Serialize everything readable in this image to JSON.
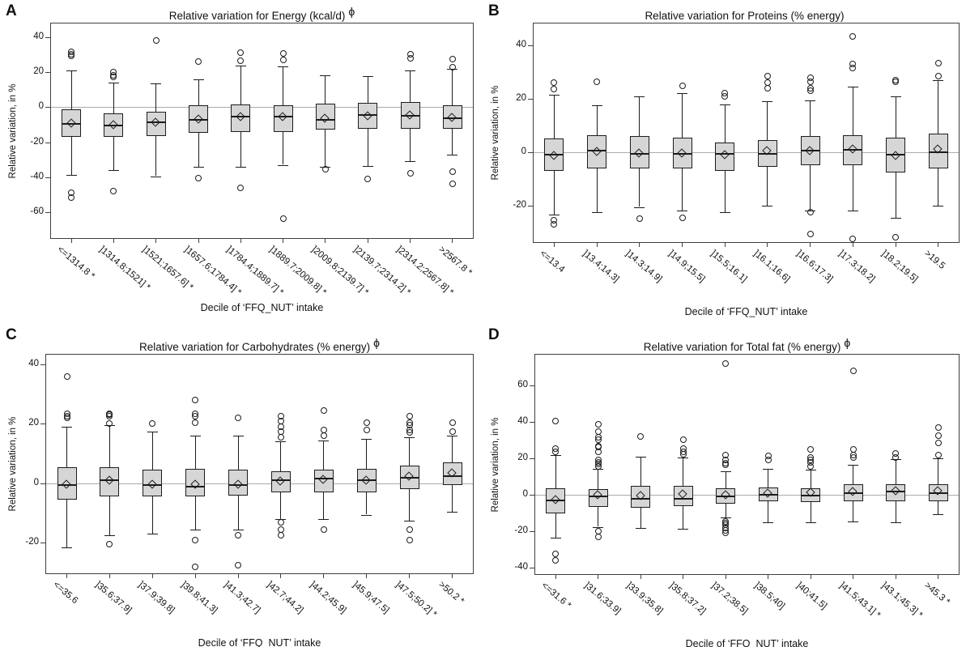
{
  "figure": {
    "background": "#ffffff",
    "box_fill": "#d6d6d6",
    "line_color": "#1c1c1c",
    "zero_line_color": "#ababab"
  },
  "chart_data": [
    {
      "type": "boxplot",
      "panel_label": "A",
      "title": "Relative variation for Energy (kcal/d)",
      "title_superscript": "ϕ",
      "ylabel": "Relative variation, in %",
      "xlabel": "Decile of ‘FFQ_NUT’ intake",
      "yticks": [
        40,
        20,
        0,
        -20,
        -40,
        -60
      ],
      "ylim": [
        -75.5,
        48.5
      ],
      "grid": false,
      "categories": [
        "<=1314.8 *",
        "]1314.8;1521] *",
        "]1521;1657.6] *",
        "]1657.6;1784.4] *",
        "]1784.4;1889.7] *",
        "]1889.7;2009.8] *",
        "]2009.8;2139.7] *",
        "]2139.7;2314.2] *",
        "]2314.2;2567.8] *",
        ">2567.8 *"
      ],
      "boxes": [
        {
          "whisker_low": -39,
          "q1": -17,
          "median": -9.5,
          "mean": -9.5,
          "q3": -1,
          "whisker_high": 21,
          "outliers": [
            32,
            30.5,
            29.5,
            -49,
            -52
          ]
        },
        {
          "whisker_low": -36,
          "q1": -17,
          "median": -10.5,
          "mean": -10,
          "q3": -3.5,
          "whisker_high": 14,
          "outliers": [
            20,
            18.5,
            17.5,
            -48
          ]
        },
        {
          "whisker_low": -39.5,
          "q1": -16.5,
          "median": -8.5,
          "mean": -9,
          "q3": -2.5,
          "whisker_high": 13.5,
          "outliers": [
            38.5
          ]
        },
        {
          "whisker_low": -34,
          "q1": -14.5,
          "median": -7,
          "mean": -7,
          "q3": 1,
          "whisker_high": 16,
          "outliers": [
            26,
            -40.5
          ]
        },
        {
          "whisker_low": -34,
          "q1": -14,
          "median": -5.5,
          "mean": -5.5,
          "q3": 1.5,
          "whisker_high": 24,
          "outliers": [
            31.5,
            26.5,
            -46
          ]
        },
        {
          "whisker_low": -33,
          "q1": -14,
          "median": -5.5,
          "mean": -5.5,
          "q3": 1,
          "whisker_high": 23.5,
          "outliers": [
            31,
            27,
            -64
          ]
        },
        {
          "whisker_low": -34,
          "q1": -13,
          "median": -7,
          "mean": -6.5,
          "q3": 2,
          "whisker_high": 18.5,
          "outliers": [
            -35.5
          ]
        },
        {
          "whisker_low": -33.5,
          "q1": -12.5,
          "median": -4.5,
          "mean": -5,
          "q3": 2.5,
          "whisker_high": 18,
          "outliers": [
            -41
          ]
        },
        {
          "whisker_low": -31,
          "q1": -12.5,
          "median": -5,
          "mean": -4.5,
          "q3": 3,
          "whisker_high": 21,
          "outliers": [
            30.5,
            28,
            -38
          ]
        },
        {
          "whisker_low": -27,
          "q1": -12.5,
          "median": -6.5,
          "mean": -6,
          "q3": 1,
          "whisker_high": 22,
          "outliers": [
            27.5,
            23,
            -37,
            -44
          ]
        }
      ]
    },
    {
      "type": "boxplot",
      "panel_label": "B",
      "title": "Relative variation for Proteins (% energy)",
      "title_superscript": "",
      "ylabel": "Relative variation, in %",
      "xlabel": "Decile of ‘FFQ_NUT’ intake",
      "yticks": [
        40,
        20,
        0,
        -20
      ],
      "ylim": [
        -34,
        48.5
      ],
      "grid": false,
      "categories": [
        "<=13.4",
        "]13.4;14.3]",
        "]14.3;14.9]",
        "]14.9;15.5]",
        "]15.5;16.1]",
        "]16.1;16.6]",
        "]16.6;17.3]",
        "]17.3;18.2]",
        "]18.2;19.5]",
        ">19.5"
      ],
      "boxes": [
        {
          "whisker_low": -23.5,
          "q1": -7,
          "median": -1,
          "mean": -1.5,
          "q3": 5,
          "whisker_high": 21.5,
          "outliers": [
            26,
            23.5,
            -25.5,
            -27
          ]
        },
        {
          "whisker_low": -22.5,
          "q1": -6,
          "median": 0.5,
          "mean": 0,
          "q3": 6.5,
          "whisker_high": 17.5,
          "outliers": [
            26.5
          ]
        },
        {
          "whisker_low": -20.5,
          "q1": -6,
          "median": -0.5,
          "mean": -0.5,
          "q3": 6,
          "whisker_high": 21,
          "outliers": [
            -25
          ]
        },
        {
          "whisker_low": -22,
          "q1": -6,
          "median": -0.5,
          "mean": -0.5,
          "q3": 5.5,
          "whisker_high": 22,
          "outliers": [
            25,
            -24.5
          ]
        },
        {
          "whisker_low": -22.5,
          "q1": -7,
          "median": -0.5,
          "mean": -1,
          "q3": 3.5,
          "whisker_high": 18,
          "outliers": [
            22,
            21
          ]
        },
        {
          "whisker_low": -20,
          "q1": -5.5,
          "median": -0.5,
          "mean": 0.5,
          "q3": 4.5,
          "whisker_high": 19,
          "outliers": [
            28.5,
            26,
            24
          ]
        },
        {
          "whisker_low": -22,
          "q1": -5,
          "median": 0.5,
          "mean": 0.5,
          "q3": 6,
          "whisker_high": 19.5,
          "outliers": [
            28,
            26.5,
            24,
            23,
            -22.5,
            -30.5
          ]
        },
        {
          "whisker_low": -22,
          "q1": -5,
          "median": 1,
          "mean": 1,
          "q3": 6.5,
          "whisker_high": 24.5,
          "outliers": [
            43.5,
            33,
            31.5,
            -32.5
          ]
        },
        {
          "whisker_low": -24.5,
          "q1": -7.5,
          "median": -1,
          "mean": -1.5,
          "q3": 5.5,
          "whisker_high": 21,
          "outliers": [
            27,
            26.5,
            -32
          ]
        },
        {
          "whisker_low": -20,
          "q1": -6,
          "median": 0,
          "mean": 1,
          "q3": 7,
          "whisker_high": 27,
          "outliers": [
            33.5,
            28.5
          ]
        }
      ]
    },
    {
      "type": "boxplot",
      "panel_label": "C",
      "title": "Relative variation for Carbohydrates (% energy)",
      "title_superscript": "ϕ",
      "ylabel": "Relative variation, in %",
      "xlabel": "Decile of ‘FFQ_NUT’ intake",
      "yticks": [
        40,
        20,
        0,
        -20
      ],
      "ylim": [
        -30.5,
        43.5
      ],
      "grid": false,
      "categories": [
        "<=35.6",
        "]35.6;37.9]",
        "]37.9;39.8]",
        "]39.8;41.3]",
        "]41.3;42.7]",
        "]42.7;44.2]",
        "]44.2;45.9]",
        "]45.9;47.5]",
        "]47.5;50.2] *",
        ">50.2 *"
      ],
      "boxes": [
        {
          "whisker_low": -21.5,
          "q1": -5.5,
          "median": -0.5,
          "mean": -0.5,
          "q3": 5.5,
          "whisker_high": 19,
          "outliers": [
            36,
            23.5,
            22.5,
            22
          ]
        },
        {
          "whisker_low": -17.5,
          "q1": -4.5,
          "median": 1,
          "mean": 1,
          "q3": 5.5,
          "whisker_high": 19.5,
          "outliers": [
            23.5,
            23,
            22.5,
            20,
            -20.5
          ]
        },
        {
          "whisker_low": -17,
          "q1": -4.5,
          "median": -0.5,
          "mean": -0.5,
          "q3": 4.5,
          "whisker_high": 17.5,
          "outliers": [
            20
          ]
        },
        {
          "whisker_low": -15.5,
          "q1": -4.5,
          "median": -1,
          "mean": -0.5,
          "q3": 5,
          "whisker_high": 16,
          "outliers": [
            28,
            23.5,
            22.5,
            20.5,
            -19,
            -28
          ]
        },
        {
          "whisker_low": -15.5,
          "q1": -4,
          "median": -0.5,
          "mean": -0.5,
          "q3": 4.5,
          "whisker_high": 16,
          "outliers": [
            22,
            -17.5,
            -27.5
          ]
        },
        {
          "whisker_low": -12,
          "q1": -3,
          "median": 1,
          "mean": 0.8,
          "q3": 4,
          "whisker_high": 14,
          "outliers": [
            22.5,
            21,
            19,
            17.5,
            15.5,
            -13,
            -15.5,
            -17.5
          ]
        },
        {
          "whisker_low": -12,
          "q1": -3,
          "median": 1.5,
          "mean": 1.2,
          "q3": 4.5,
          "whisker_high": 14.5,
          "outliers": [
            24.5,
            18,
            16,
            -15.5
          ]
        },
        {
          "whisker_low": -10.5,
          "q1": -3,
          "median": 1,
          "mean": 1,
          "q3": 5,
          "whisker_high": 15,
          "outliers": [
            20.5,
            18
          ]
        },
        {
          "whisker_low": -12.5,
          "q1": -2,
          "median": 2,
          "mean": 2.3,
          "q3": 6,
          "whisker_high": 15.5,
          "outliers": [
            22.5,
            20.5,
            19.5,
            18,
            17,
            -15.5,
            -19
          ]
        },
        {
          "whisker_low": -9.5,
          "q1": -0.5,
          "median": 2.5,
          "mean": 3.3,
          "q3": 7,
          "whisker_high": 16,
          "outliers": [
            20.5,
            17.5
          ]
        }
      ]
    },
    {
      "type": "boxplot",
      "panel_label": "D",
      "title": "Relative variation for Total fat (% energy)",
      "title_superscript": "ϕ",
      "ylabel": "Relative variation, in %",
      "xlabel": "Decile of ‘FFQ_NUT’ intake",
      "yticks": [
        60,
        40,
        20,
        0,
        -20,
        -40
      ],
      "ylim": [
        -44,
        77.5
      ],
      "grid": false,
      "categories": [
        "<=31.6 *",
        "]31.6;33.9]",
        "]33.9;35.8]",
        "]35.8;37.2]",
        "]37.2;38.5]",
        "]38.5;40]",
        "]40;41.5]",
        "]41.5;43.1] *",
        "]43.1;45.3] *",
        ">45.3 *"
      ],
      "boxes": [
        {
          "whisker_low": -23.5,
          "q1": -10,
          "median": -3,
          "mean": -3,
          "q3": 3.5,
          "whisker_high": 22,
          "outliers": [
            40.5,
            25.5,
            23.5,
            -32.5,
            -36
          ]
        },
        {
          "whisker_low": -17.5,
          "q1": -6.5,
          "median": -1,
          "mean": 0,
          "q3": 3,
          "whisker_high": 14.5,
          "outliers": [
            39,
            35,
            31.5,
            30.5,
            27,
            26.5,
            23.5,
            19,
            18,
            17,
            15.5,
            -20,
            -23
          ]
        },
        {
          "whisker_low": -18,
          "q1": -7,
          "median": -2,
          "mean": -0.5,
          "q3": 5,
          "whisker_high": 21,
          "outliers": [
            32
          ]
        },
        {
          "whisker_low": -18.5,
          "q1": -6,
          "median": -2,
          "mean": 0.3,
          "q3": 5,
          "whisker_high": 20.5,
          "outliers": [
            30.5,
            25.5,
            23.5,
            22.5
          ]
        },
        {
          "whisker_low": -12.5,
          "q1": -5,
          "median": -1,
          "mean": 0,
          "q3": 3.5,
          "whisker_high": 13,
          "outliers": [
            72,
            22,
            19,
            17.5,
            16.5,
            -14.5,
            -15.5,
            -16.5,
            -18,
            -19.5,
            -21
          ]
        },
        {
          "whisker_low": -15,
          "q1": -3.5,
          "median": 0,
          "mean": 0.7,
          "q3": 4,
          "whisker_high": 14.5,
          "outliers": [
            21.5,
            19
          ]
        },
        {
          "whisker_low": -15,
          "q1": -4,
          "median": -0.5,
          "mean": 1.2,
          "q3": 3.5,
          "whisker_high": 14,
          "outliers": [
            25,
            20.5,
            19,
            18,
            15.5
          ]
        },
        {
          "whisker_low": -14.5,
          "q1": -3.5,
          "median": 1,
          "mean": 1.8,
          "q3": 6,
          "whisker_high": 16.5,
          "outliers": [
            68,
            25,
            22,
            20.5
          ]
        },
        {
          "whisker_low": -15,
          "q1": -3.5,
          "median": 2,
          "mean": 2.2,
          "q3": 6,
          "whisker_high": 19.5,
          "outliers": [
            23,
            20.5
          ]
        },
        {
          "whisker_low": -10.5,
          "q1": -3.5,
          "median": 1,
          "mean": 2.2,
          "q3": 6,
          "whisker_high": 20,
          "outliers": [
            37,
            32.5,
            28.5,
            22
          ]
        }
      ]
    }
  ]
}
